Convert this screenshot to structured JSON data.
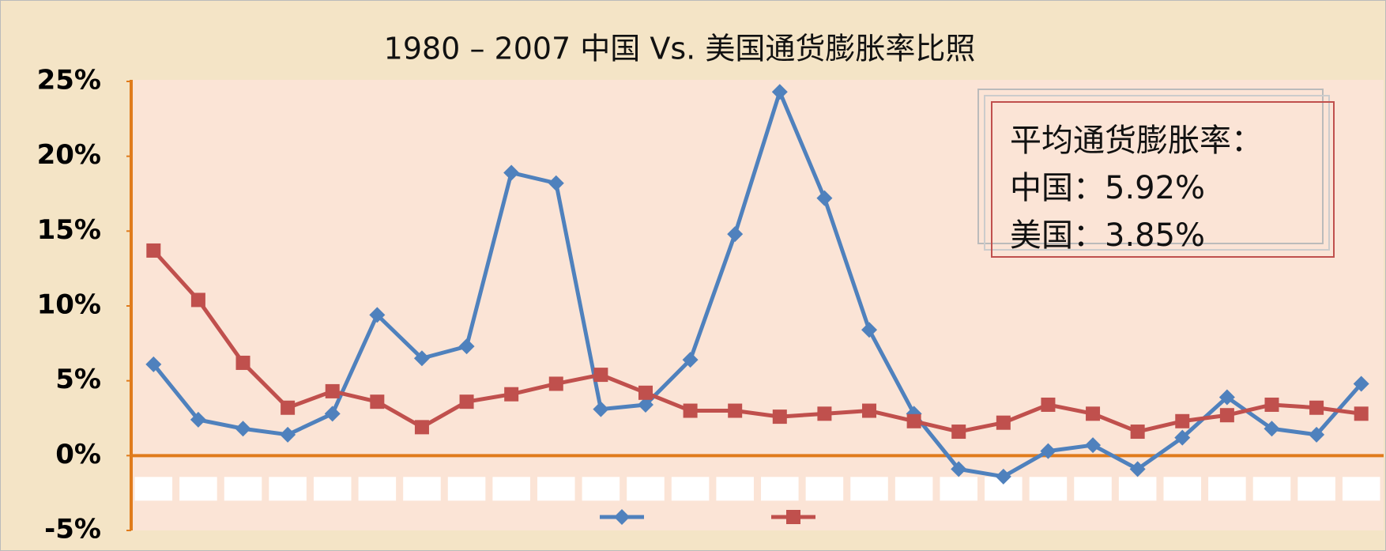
{
  "chart_data": {
    "type": "line",
    "title": "1980 – 2007 中国 Vs. 美国通货膨胀率比照",
    "categories": [
      null,
      null,
      null,
      null,
      null,
      null,
      null,
      null,
      null,
      null,
      null,
      null,
      null,
      null,
      null,
      null,
      null,
      null,
      null,
      null,
      null,
      null,
      null,
      null,
      null,
      null,
      null,
      null
    ],
    "series": [
      {
        "color": "#4f81bd",
        "marker": "diamond",
        "values": [
          6.1,
          2.4,
          1.8,
          1.4,
          2.8,
          9.4,
          6.5,
          7.3,
          18.9,
          18.2,
          3.1,
          3.4,
          6.4,
          14.8,
          24.3,
          17.2,
          8.4,
          2.8,
          -0.9,
          -1.4,
          0.3,
          0.7,
          -0.9,
          1.2,
          3.9,
          1.8,
          1.4,
          4.8
        ]
      },
      {
        "color": "#c0504d",
        "marker": "square",
        "values": [
          13.7,
          10.4,
          6.2,
          3.2,
          4.3,
          3.6,
          1.9,
          3.6,
          4.1,
          4.8,
          5.4,
          4.2,
          3.0,
          3.0,
          2.6,
          2.8,
          3.0,
          2.3,
          1.6,
          2.2,
          3.4,
          2.8,
          1.6,
          2.3,
          2.7,
          3.4,
          3.2,
          2.8
        ]
      }
    ],
    "ylim": [
      -5,
      25
    ],
    "yticks": [
      {
        "value": 25,
        "label": "25%"
      },
      {
        "value": 20,
        "label": "20%"
      },
      {
        "value": 15,
        "label": "15%"
      },
      {
        "value": 10,
        "label": "10%"
      },
      {
        "value": 5,
        "label": "5%"
      },
      {
        "value": 0,
        "label": "0%"
      },
      {
        "value": -5,
        "label": "-5%"
      }
    ],
    "annotations": [
      "平均通货膨胀率：",
      "中国：5.92%",
      "美国：3.85%"
    ],
    "legend": "bottom"
  }
}
